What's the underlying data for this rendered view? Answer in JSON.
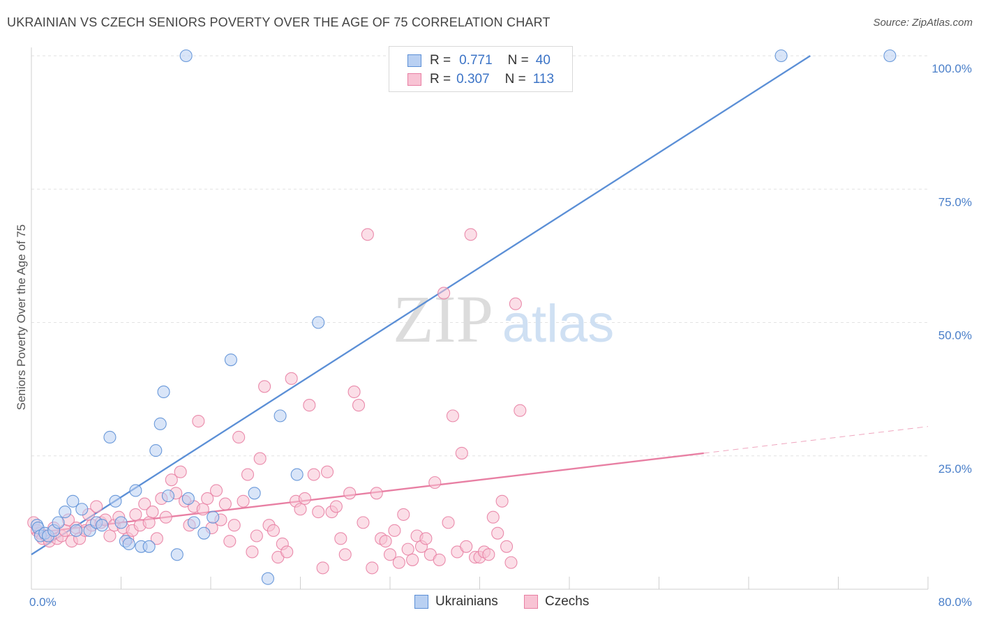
{
  "title": "UKRAINIAN VS CZECH SENIORS POVERTY OVER THE AGE OF 75 CORRELATION CHART",
  "source": "Source: ZipAtlas.com",
  "watermark": {
    "zip": "ZIP",
    "atlas": "atlas"
  },
  "legend": {
    "rows": [
      {
        "r_label": "R =",
        "r_value": "0.771",
        "n_label": "N =",
        "n_value": "40",
        "color": "#5b8fd6",
        "fill": "#b9d0f2"
      },
      {
        "r_label": "R =",
        "r_value": "0.307",
        "n_label": "N =",
        "n_value": "113",
        "color": "#e87fa3",
        "fill": "#f8c3d4"
      }
    ]
  },
  "bottom_legend": {
    "items": [
      {
        "label": "Ukrainians"
      },
      {
        "label": "Czechs"
      }
    ]
  },
  "chart_data": {
    "type": "scatter",
    "title": "UKRAINIAN VS CZECH SENIORS POVERTY OVER THE AGE OF 75 CORRELATION CHART",
    "xlabel": "",
    "ylabel": "Seniors Poverty Over the Age of 75",
    "xlim": [
      0,
      80
    ],
    "ylim": [
      0,
      100
    ],
    "x_tick_labels": [
      "0.0%",
      "80.0%"
    ],
    "y_ticks": [
      25,
      50,
      75,
      100
    ],
    "y_tick_labels": [
      "25.0%",
      "50.0%",
      "75.0%",
      "100.0%"
    ],
    "grid": true,
    "legend_position": "top-center",
    "series": [
      {
        "name": "Ukrainians",
        "color": "#5b8fd6",
        "fill": "#b9d0f2",
        "points": [
          [
            0.5,
            12.0
          ],
          [
            0.6,
            11.5
          ],
          [
            0.8,
            10.0
          ],
          [
            1.2,
            10.5
          ],
          [
            1.5,
            10.0
          ],
          [
            2.0,
            11.0
          ],
          [
            2.4,
            12.5
          ],
          [
            3.0,
            14.5
          ],
          [
            3.7,
            16.5
          ],
          [
            4.5,
            15.0
          ],
          [
            5.2,
            11.0
          ],
          [
            5.8,
            12.5
          ],
          [
            6.3,
            12.0
          ],
          [
            7.0,
            28.5
          ],
          [
            7.5,
            16.5
          ],
          [
            8.0,
            12.5
          ],
          [
            8.4,
            9.0
          ],
          [
            8.7,
            8.5
          ],
          [
            9.3,
            18.5
          ],
          [
            9.8,
            8.0
          ],
          [
            10.5,
            8.0
          ],
          [
            11.1,
            26.0
          ],
          [
            11.5,
            31.0
          ],
          [
            11.8,
            37.0
          ],
          [
            12.2,
            17.5
          ],
          [
            13.0,
            6.5
          ],
          [
            14.0,
            17.0
          ],
          [
            14.5,
            12.5
          ],
          [
            15.4,
            10.5
          ],
          [
            16.2,
            13.5
          ],
          [
            17.8,
            43.0
          ],
          [
            19.9,
            18.0
          ],
          [
            21.1,
            2.0
          ],
          [
            22.2,
            32.5
          ],
          [
            23.7,
            21.5
          ],
          [
            25.6,
            50.0
          ],
          [
            13.8,
            100.0
          ],
          [
            66.9,
            100.0
          ],
          [
            76.6,
            100.0
          ],
          [
            4.0,
            11.0
          ]
        ]
      },
      {
        "name": "Czechs",
        "color": "#e87fa3",
        "fill": "#f8c3d4",
        "points": [
          [
            0.2,
            12.5
          ],
          [
            0.5,
            11.0
          ],
          [
            0.8,
            10.5
          ],
          [
            1.0,
            9.5
          ],
          [
            1.3,
            10.0
          ],
          [
            1.6,
            9.0
          ],
          [
            2.0,
            11.5
          ],
          [
            2.3,
            9.5
          ],
          [
            2.7,
            10.0
          ],
          [
            3.0,
            11.0
          ],
          [
            3.3,
            13.0
          ],
          [
            3.6,
            9.0
          ],
          [
            4.0,
            11.5
          ],
          [
            4.3,
            9.5
          ],
          [
            4.8,
            11.0
          ],
          [
            5.1,
            14.0
          ],
          [
            5.4,
            12.0
          ],
          [
            5.8,
            15.5
          ],
          [
            6.2,
            12.5
          ],
          [
            6.6,
            13.0
          ],
          [
            7.0,
            10.0
          ],
          [
            7.4,
            12.0
          ],
          [
            7.8,
            13.5
          ],
          [
            8.2,
            11.5
          ],
          [
            8.6,
            9.5
          ],
          [
            9.0,
            11.0
          ],
          [
            9.3,
            14.0
          ],
          [
            9.7,
            12.0
          ],
          [
            10.1,
            16.0
          ],
          [
            10.5,
            12.5
          ],
          [
            10.8,
            14.5
          ],
          [
            11.2,
            9.5
          ],
          [
            11.6,
            17.0
          ],
          [
            12.0,
            13.5
          ],
          [
            12.5,
            20.5
          ],
          [
            12.9,
            18.0
          ],
          [
            13.3,
            22.0
          ],
          [
            13.7,
            16.5
          ],
          [
            14.1,
            12.0
          ],
          [
            14.5,
            15.5
          ],
          [
            14.9,
            31.5
          ],
          [
            15.3,
            15.0
          ],
          [
            15.7,
            17.0
          ],
          [
            16.1,
            11.5
          ],
          [
            16.5,
            18.5
          ],
          [
            16.9,
            13.0
          ],
          [
            17.3,
            16.0
          ],
          [
            17.7,
            9.0
          ],
          [
            18.1,
            12.0
          ],
          [
            18.5,
            28.5
          ],
          [
            18.9,
            16.5
          ],
          [
            19.3,
            21.5
          ],
          [
            19.7,
            7.0
          ],
          [
            20.1,
            10.0
          ],
          [
            20.4,
            24.5
          ],
          [
            20.8,
            38.0
          ],
          [
            21.2,
            12.0
          ],
          [
            21.6,
            11.0
          ],
          [
            22.0,
            6.0
          ],
          [
            22.4,
            8.5
          ],
          [
            22.8,
            7.0
          ],
          [
            23.2,
            39.5
          ],
          [
            23.6,
            16.5
          ],
          [
            24.0,
            15.0
          ],
          [
            24.4,
            17.0
          ],
          [
            24.8,
            34.5
          ],
          [
            25.2,
            21.5
          ],
          [
            25.6,
            14.5
          ],
          [
            26.0,
            4.0
          ],
          [
            26.4,
            22.0
          ],
          [
            26.8,
            14.5
          ],
          [
            27.2,
            15.5
          ],
          [
            27.6,
            9.5
          ],
          [
            28.0,
            6.5
          ],
          [
            28.4,
            18.0
          ],
          [
            28.8,
            37.0
          ],
          [
            29.2,
            34.5
          ],
          [
            29.6,
            12.5
          ],
          [
            30.0,
            66.5
          ],
          [
            30.4,
            4.0
          ],
          [
            30.8,
            18.0
          ],
          [
            31.2,
            9.5
          ],
          [
            31.6,
            9.0
          ],
          [
            32.0,
            6.5
          ],
          [
            32.4,
            11.0
          ],
          [
            32.8,
            5.0
          ],
          [
            33.2,
            14.0
          ],
          [
            33.6,
            7.5
          ],
          [
            34.0,
            5.5
          ],
          [
            34.4,
            10.0
          ],
          [
            34.8,
            8.0
          ],
          [
            35.2,
            9.5
          ],
          [
            35.6,
            6.5
          ],
          [
            36.0,
            20.0
          ],
          [
            36.4,
            5.5
          ],
          [
            36.8,
            55.5
          ],
          [
            37.2,
            12.5
          ],
          [
            37.6,
            32.5
          ],
          [
            38.0,
            7.0
          ],
          [
            38.4,
            25.5
          ],
          [
            38.8,
            8.0
          ],
          [
            39.2,
            66.5
          ],
          [
            39.6,
            6.0
          ],
          [
            40.0,
            6.0
          ],
          [
            40.4,
            7.0
          ],
          [
            40.8,
            6.5
          ],
          [
            41.2,
            13.5
          ],
          [
            41.6,
            10.5
          ],
          [
            42.0,
            16.5
          ],
          [
            42.4,
            8.0
          ],
          [
            42.8,
            5.0
          ],
          [
            43.2,
            53.5
          ],
          [
            43.6,
            33.5
          ]
        ]
      }
    ],
    "trendlines": [
      {
        "series": "Ukrainians",
        "x": [
          0,
          69.5
        ],
        "y": [
          6.5,
          100
        ],
        "style": "solid"
      },
      {
        "series": "Czechs",
        "x": [
          0,
          60
        ],
        "y": [
          10.5,
          25.5
        ],
        "style": "solid"
      },
      {
        "series": "Czechs",
        "x": [
          60,
          80
        ],
        "y": [
          25.5,
          30.5
        ],
        "style": "dashed"
      }
    ]
  }
}
